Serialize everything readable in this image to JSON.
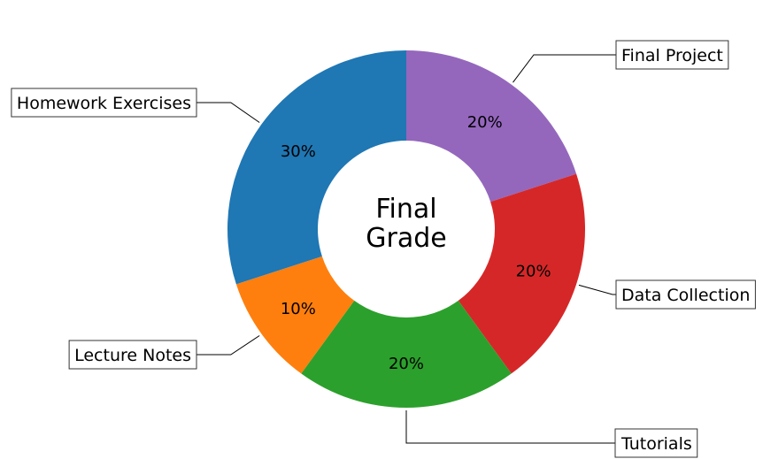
{
  "chart_data": {
    "type": "pie",
    "donut": true,
    "center_text": [
      "Final",
      "Grade"
    ],
    "slices": [
      {
        "label": "Final Project",
        "value": 20,
        "pct_label": "20%",
        "color": "#9467bd"
      },
      {
        "label": "Data Collection",
        "value": 20,
        "pct_label": "20%",
        "color": "#d62728"
      },
      {
        "label": "Tutorials",
        "value": 20,
        "pct_label": "20%",
        "color": "#2ca02c"
      },
      {
        "label": "Lecture Notes",
        "value": 10,
        "pct_label": "10%",
        "color": "#ff7f0e"
      },
      {
        "label": "Homework Exercises",
        "value": 30,
        "pct_label": "30%",
        "color": "#1f77b4"
      }
    ],
    "start_angle": "top",
    "direction": "clockwise"
  }
}
